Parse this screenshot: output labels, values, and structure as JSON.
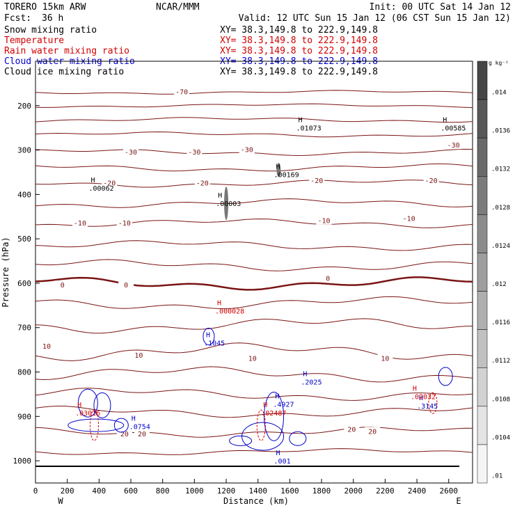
{
  "header": {
    "model": "TORERO  15km ARW",
    "center": "NCAR/MMM",
    "init": "Init: 00 UTC Sat 14 Jan 12",
    "fcst_label": "Fcst:",
    "fcst_value": "36 h",
    "valid": "Valid: 12 UTC Sun 15 Jan 12 (06 CST Sun 15 Jan 12)"
  },
  "fields": [
    {
      "name": "Snow mixing ratio",
      "xy": "XY=  38.3,149.8 to 222.9,149.8",
      "color": "#000000"
    },
    {
      "name": "Temperature",
      "xy": "XY=  38.3,149.8 to 222.9,149.8",
      "color": "#d40000"
    },
    {
      "name": "Rain water mixing ratio",
      "xy": "XY=  38.3,149.8 to 222.9,149.8",
      "color": "#d40000"
    },
    {
      "name": "Cloud water mixing ratio",
      "xy": "XY=  38.3,149.8 to 222.9,149.8",
      "color": "#0000cc"
    },
    {
      "name": "Cloud ice mixing ratio",
      "xy": "XY=  38.3,149.8 to 222.9,149.8",
      "color": "#000000"
    }
  ],
  "colorbar": {
    "unit": "g kg⁻¹",
    "ticks": [
      ".014",
      ".0136",
      ".0132",
      ".0128",
      ".0124",
      ".012",
      ".0116",
      ".0112",
      ".0108",
      ".0104",
      ".01"
    ]
  },
  "chart_data": {
    "type": "contour-cross-section",
    "xlabel": "Distance (km)",
    "ylabel": "Pressure (hPa)",
    "xlim": [
      0,
      2750
    ],
    "ylim": [
      1050,
      100
    ],
    "x_ticks": [
      "0",
      "200",
      "400",
      "600",
      "800",
      "1000",
      "1200",
      "1400",
      "1600",
      "1800",
      "2000",
      "2200",
      "2400",
      "2600"
    ],
    "y_ticks": [
      "200",
      "300",
      "400",
      "500",
      "600",
      "700",
      "800",
      "900",
      "1000"
    ],
    "x_endpoints": {
      "left": "W",
      "right": "E"
    },
    "temperature_contours": [
      {
        "label": "-70",
        "labels_at": [
          [
            920,
            170
          ]
        ]
      },
      {
        "label": "-30",
        "labels_at": [
          [
            600,
            305
          ],
          [
            1000,
            305
          ],
          [
            1330,
            300
          ],
          [
            2630,
            290
          ]
        ]
      },
      {
        "label": "-20",
        "labels_at": [
          [
            465,
            375
          ],
          [
            1050,
            375
          ],
          [
            1770,
            370
          ],
          [
            2490,
            370
          ]
        ]
      },
      {
        "label": "-10",
        "labels_at": [
          [
            280,
            465
          ],
          [
            560,
            465
          ],
          [
            1815,
            460
          ],
          [
            2350,
            455
          ]
        ]
      },
      {
        "label": "0",
        "labels_at": [
          [
            170,
            605
          ],
          [
            570,
            605
          ],
          [
            1840,
            590
          ]
        ]
      },
      {
        "label": "10",
        "labels_at": [
          [
            70,
            743
          ],
          [
            650,
            763
          ],
          [
            1365,
            770
          ],
          [
            2200,
            770
          ]
        ]
      },
      {
        "label": "20",
        "labels_at": [
          [
            560,
            940
          ],
          [
            670,
            940
          ],
          [
            1990,
            930
          ],
          [
            2120,
            935
          ]
        ]
      }
    ],
    "maxima_labels": [
      {
        "field": "Snow mixing ratio",
        "label": ".01073",
        "x": 1640,
        "p": 250
      },
      {
        "field": "Snow mixing ratio",
        "label": ".00585",
        "x": 2550,
        "p": 250
      },
      {
        "field": "Snow mixing ratio",
        "label": ".00169",
        "x": 1500,
        "p": 355
      },
      {
        "field": "Snow mixing ratio",
        "label": ".00062",
        "x": 335,
        "p": 385
      },
      {
        "field": "Snow mixing ratio",
        "label": ".00003",
        "x": 1135,
        "p": 420
      },
      {
        "field": "Rain water mixing ratio",
        "label": ".000028",
        "x": 1130,
        "p": 662
      },
      {
        "field": "Cloud water mixing ratio",
        "label": ".1045",
        "x": 1060,
        "p": 734
      },
      {
        "field": "Cloud water mixing ratio",
        "label": ".2025",
        "x": 1670,
        "p": 822
      },
      {
        "field": "Cloud water mixing ratio",
        "label": ".3145",
        "x": 2400,
        "p": 876
      },
      {
        "field": "Cloud water mixing ratio",
        "label": ".4927",
        "x": 1495,
        "p": 872
      },
      {
        "field": "Cloud water mixing ratio",
        "label": ".0754",
        "x": 590,
        "p": 922
      },
      {
        "field": "Cloud water mixing ratio",
        "label": ".001",
        "x": 1500,
        "p": 1000
      },
      {
        "field": "Rain water mixing ratio",
        "label": ".02032",
        "x": 2360,
        "p": 855
      },
      {
        "field": "Rain water mixing ratio",
        "label": ".02487",
        "x": 1420,
        "p": 892
      },
      {
        "field": "Rain water mixing ratio",
        "label": ".03016",
        "x": 250,
        "p": 892
      }
    ]
  }
}
